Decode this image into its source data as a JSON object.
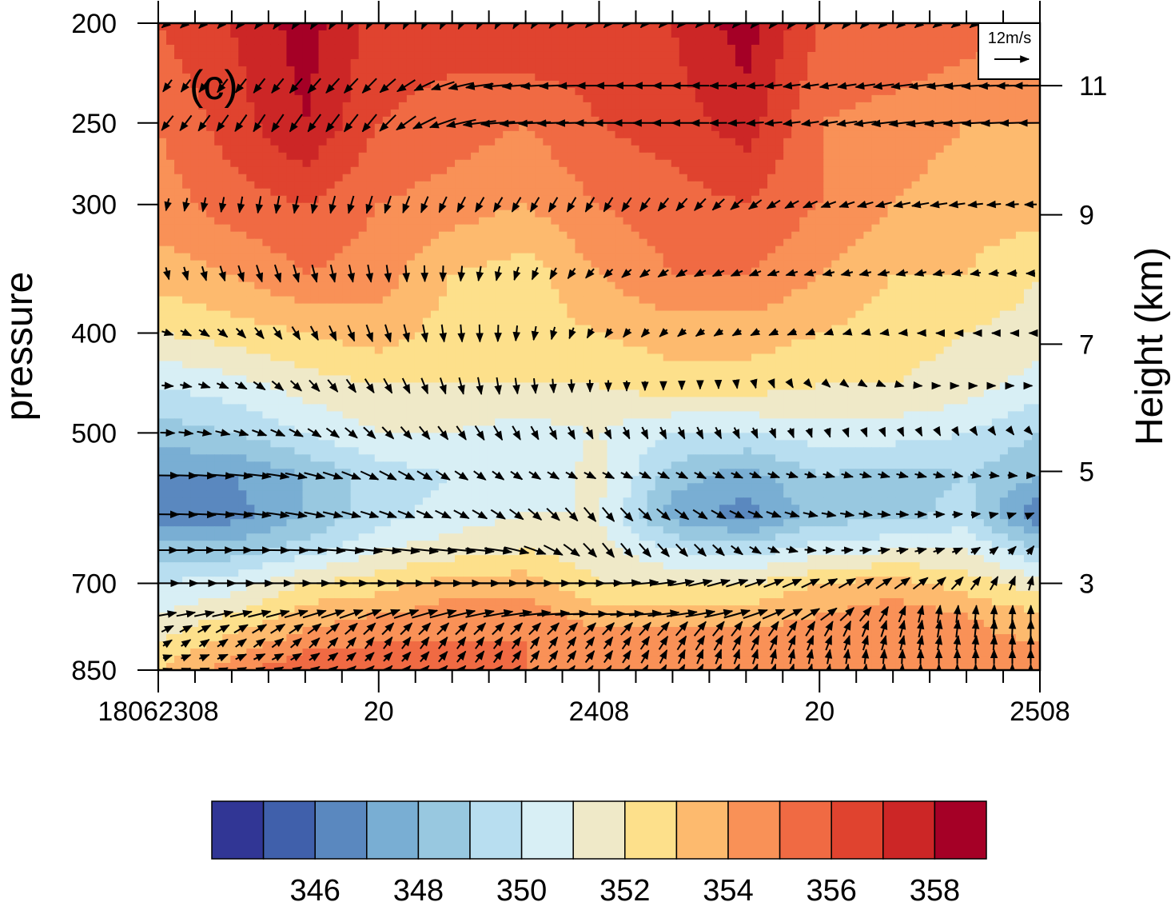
{
  "panel_label": "(c)",
  "reference_vector": {
    "label": "12m/s",
    "speed": 12
  },
  "chart_data": {
    "type": "heatmap",
    "subtype": "pressure-time cross section with wind vectors",
    "ylabel": "pressure",
    "y2label": "Height (km)",
    "y_axis_pressure_log": true,
    "ylim": [
      850,
      200
    ],
    "y_ticks": [
      {
        "value": 200,
        "label": "200"
      },
      {
        "value": 250,
        "label": "250"
      },
      {
        "value": 300,
        "label": "300"
      },
      {
        "value": 400,
        "label": "400"
      },
      {
        "value": 500,
        "label": "500"
      },
      {
        "value": 700,
        "label": "700"
      },
      {
        "value": 850,
        "label": "850"
      }
    ],
    "y2_ticks": [
      {
        "value": 11,
        "label": "11",
        "pressure": 230
      },
      {
        "value": 9,
        "label": "9",
        "pressure": 307
      },
      {
        "value": 7,
        "label": "7",
        "pressure": 410
      },
      {
        "value": 5,
        "label": "5",
        "pressure": 545
      },
      {
        "value": 3,
        "label": "3",
        "pressure": 700
      }
    ],
    "x_hours": [
      0,
      48
    ],
    "x_ticks": [
      {
        "hour": 0,
        "label": "18062308"
      },
      {
        "hour": 12,
        "label": "20"
      },
      {
        "hour": 24,
        "label": "2408"
      },
      {
        "hour": 36,
        "label": "20"
      },
      {
        "hour": 48,
        "label": "2508"
      }
    ],
    "colorbar": {
      "levels": [
        345,
        346,
        347,
        348,
        349,
        350,
        351,
        352,
        353,
        354,
        355,
        356,
        357,
        358
      ],
      "labeled_levels": [
        {
          "value": 346,
          "label": "346"
        },
        {
          "value": 348,
          "label": "348"
        },
        {
          "value": 350,
          "label": "350"
        },
        {
          "value": 352,
          "label": "352"
        },
        {
          "value": 354,
          "label": "354"
        },
        {
          "value": 356,
          "label": "356"
        },
        {
          "value": 358,
          "label": "358"
        }
      ],
      "colors": [
        "#313695",
        "#4060ab",
        "#5a88bf",
        "#79aed3",
        "#98c8e0",
        "#b8def0",
        "#d8eff5",
        "#efe9c8",
        "#fde08b",
        "#fdba6e",
        "#f99157",
        "#f06a43",
        "#e0432f",
        "#cc2626",
        "#a50026"
      ]
    },
    "theta_e_field": {
      "units": "K",
      "times_hours": [
        0,
        4,
        8,
        12,
        16,
        20,
        24,
        28,
        32,
        36,
        40,
        44,
        48
      ],
      "rows": [
        {
          "pressure": 200,
          "values": [
            356,
            357,
            358.5,
            356.5,
            356.5,
            357,
            356.5,
            357,
            358.5,
            356,
            356,
            355.5,
            355
          ]
        },
        {
          "pressure": 250,
          "values": [
            355,
            356.5,
            358,
            356,
            355.5,
            355,
            356,
            356.5,
            357.5,
            355,
            354.5,
            354,
            354
          ]
        },
        {
          "pressure": 300,
          "values": [
            354.5,
            355.5,
            356,
            355,
            354.5,
            354,
            355,
            355.5,
            356,
            355,
            354,
            353.5,
            353.5
          ]
        },
        {
          "pressure": 350,
          "values": [
            353.5,
            354,
            355,
            354.5,
            353,
            352.5,
            354,
            355,
            355,
            354,
            353,
            353,
            352
          ]
        },
        {
          "pressure": 400,
          "values": [
            352,
            352.5,
            353,
            353.5,
            352.5,
            352.5,
            353,
            353.5,
            353.5,
            353,
            352.5,
            352,
            351.5
          ]
        },
        {
          "pressure": 450,
          "values": [
            350,
            350.5,
            351.5,
            352,
            352,
            352,
            352,
            352.5,
            352.5,
            352,
            352,
            351.5,
            350.5
          ]
        },
        {
          "pressure": 500,
          "values": [
            348.5,
            349,
            350,
            351,
            351,
            350.5,
            351,
            350,
            350,
            350.5,
            350.5,
            350,
            349
          ]
        },
        {
          "pressure": 550,
          "values": [
            347,
            347,
            348,
            349.5,
            350,
            350,
            351.5,
            348.5,
            347.5,
            349,
            348.5,
            349,
            348
          ]
        },
        {
          "pressure": 600,
          "values": [
            346,
            346.5,
            348,
            349.5,
            350.5,
            351,
            351,
            347.5,
            346.5,
            348.5,
            348.5,
            349.5,
            346
          ]
        },
        {
          "pressure": 650,
          "values": [
            348.5,
            348.5,
            349.5,
            351,
            351.5,
            352,
            351.5,
            350,
            349.5,
            350.5,
            351,
            351,
            349
          ]
        },
        {
          "pressure": 700,
          "values": [
            350,
            350.5,
            352,
            352.5,
            353.5,
            353.5,
            352,
            352,
            352,
            353,
            353.5,
            352.5,
            351.5
          ]
        },
        {
          "pressure": 750,
          "values": [
            351,
            352,
            353.5,
            354,
            354.5,
            354.5,
            353.5,
            353.5,
            353.5,
            354,
            354.5,
            354,
            353
          ]
        },
        {
          "pressure": 800,
          "values": [
            352,
            353.5,
            354.5,
            355,
            355,
            355,
            354.5,
            354.5,
            354.5,
            354.5,
            355,
            354.5,
            354
          ]
        },
        {
          "pressure": 850,
          "values": [
            353,
            354.5,
            356,
            356,
            355,
            355,
            355,
            355,
            355,
            355,
            355,
            355,
            354.5
          ]
        }
      ]
    },
    "wind_vectors": {
      "units": "m/s",
      "levels_hpa": [
        200,
        230,
        250,
        300,
        350,
        400,
        450,
        500,
        550,
        600,
        650,
        700,
        750,
        775,
        800,
        825,
        850
      ],
      "times_hours": [
        0,
        6,
        12,
        18,
        24,
        30,
        36,
        42,
        48
      ],
      "rows": [
        {
          "pressure": 200,
          "u": [
            -4,
            -3,
            -2,
            -2,
            -3,
            -3,
            -3,
            -4,
            -4
          ],
          "v": [
            -3,
            -4,
            -4,
            -4,
            -3,
            -3,
            -4,
            -3,
            -3
          ]
        },
        {
          "pressure": 230,
          "u": [
            -3,
            -4,
            -5,
            -10,
            -9,
            -6,
            -6,
            -8,
            -12
          ],
          "v": [
            -4,
            -5,
            -5,
            -1,
            0,
            0,
            -1,
            -1,
            0
          ]
        },
        {
          "pressure": 250,
          "u": [
            -4,
            -4,
            -5,
            -12,
            -10,
            -6,
            -6,
            -10,
            -8
          ],
          "v": [
            -5,
            -6,
            -6,
            -1,
            0,
            0,
            -1,
            -1,
            0
          ]
        },
        {
          "pressure": 300,
          "u": [
            -1,
            -1,
            -2,
            -3,
            -3,
            -4,
            -5,
            -6,
            -4
          ],
          "v": [
            -4,
            -6,
            -6,
            -5,
            -5,
            -4,
            -2,
            -1,
            0
          ]
        },
        {
          "pressure": 350,
          "u": [
            1,
            2,
            1,
            -1,
            -3,
            -4,
            -4,
            -4,
            -3
          ],
          "v": [
            -4,
            -6,
            -6,
            -5,
            -3,
            -2,
            -1,
            -1,
            0
          ]
        },
        {
          "pressure": 400,
          "u": [
            4,
            3,
            2,
            0,
            -2,
            -3,
            -3,
            -2,
            -1
          ],
          "v": [
            -1,
            -4,
            -6,
            -6,
            -3,
            -2,
            -1,
            0,
            0
          ]
        },
        {
          "pressure": 450,
          "u": [
            4,
            4,
            3,
            1,
            0,
            0,
            1,
            1,
            1
          ],
          "v": [
            0,
            -3,
            -5,
            -6,
            -4,
            -2,
            -1,
            0,
            0
          ]
        },
        {
          "pressure": 500,
          "u": [
            5,
            5,
            4,
            3,
            2,
            2,
            1,
            1,
            1
          ],
          "v": [
            0,
            -2,
            -4,
            -5,
            -4,
            -4,
            -3,
            -2,
            -1
          ]
        },
        {
          "pressure": 550,
          "u": [
            8,
            8,
            6,
            4,
            4,
            4,
            4,
            4,
            3
          ],
          "v": [
            0,
            -1,
            -3,
            -3,
            -2,
            -2,
            -1,
            -1,
            0
          ]
        },
        {
          "pressure": 600,
          "u": [
            8,
            8,
            6,
            5,
            4,
            5,
            5,
            4,
            2
          ],
          "v": [
            0,
            -1,
            -2,
            -3,
            -5,
            -3,
            -1,
            0,
            1
          ]
        },
        {
          "pressure": 650,
          "u": [
            7,
            8,
            9,
            10,
            4,
            4,
            4,
            4,
            2
          ],
          "v": [
            0,
            0,
            -1,
            -1,
            -5,
            -4,
            0,
            1,
            3
          ]
        },
        {
          "pressure": 700,
          "u": [
            8,
            10,
            12,
            14,
            10,
            8,
            6,
            5,
            1
          ],
          "v": [
            0,
            0,
            0,
            0,
            0,
            2,
            3,
            4,
            5
          ]
        },
        {
          "pressure": 750,
          "u": [
            6,
            8,
            8,
            10,
            12,
            10,
            6,
            1,
            0
          ],
          "v": [
            1,
            2,
            3,
            2,
            0,
            2,
            4,
            6,
            6
          ]
        },
        {
          "pressure": 775,
          "u": [
            4,
            5,
            4,
            4,
            4,
            4,
            3,
            1,
            0
          ],
          "v": [
            2,
            3,
            4,
            4,
            4,
            5,
            5,
            6,
            6
          ]
        },
        {
          "pressure": 800,
          "u": [
            3,
            4,
            3,
            3,
            3,
            3,
            2,
            1,
            0
          ],
          "v": [
            2,
            3,
            4,
            4,
            4,
            5,
            5,
            5,
            5
          ]
        },
        {
          "pressure": 825,
          "u": [
            3,
            4,
            3,
            3,
            3,
            2,
            1,
            0,
            0
          ],
          "v": [
            1,
            2,
            3,
            4,
            4,
            5,
            5,
            5,
            5
          ]
        },
        {
          "pressure": 850,
          "u": [
            3,
            4,
            3,
            3,
            2,
            2,
            1,
            0,
            0
          ],
          "v": [
            1,
            2,
            3,
            3,
            3,
            4,
            4,
            4,
            4
          ]
        }
      ]
    }
  }
}
